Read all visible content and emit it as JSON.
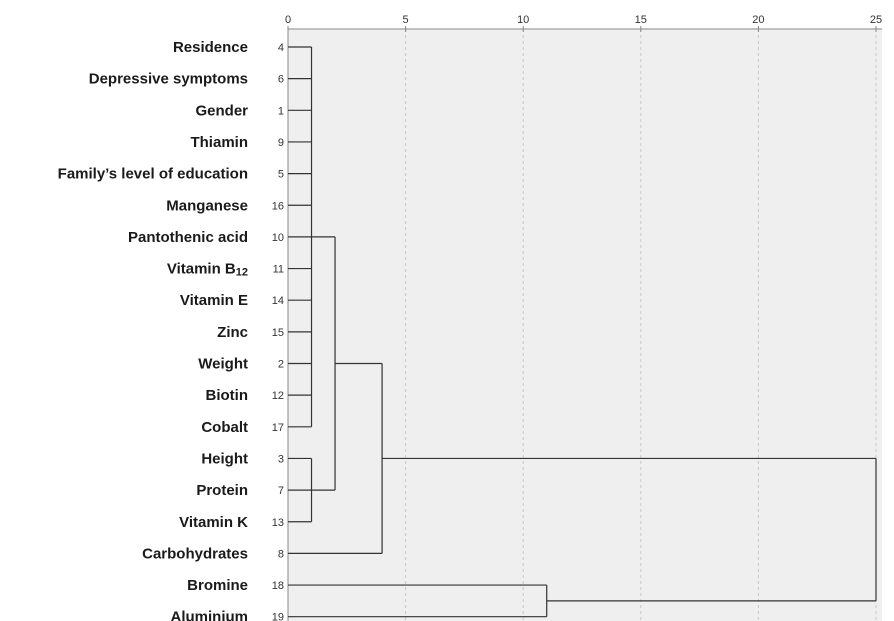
{
  "chart_data": {
    "type": "dendrogram",
    "xlim": [
      0,
      25
    ],
    "x_ticks": [
      "0",
      "5",
      "10",
      "15",
      "20",
      "25"
    ],
    "grid": true,
    "colors": {
      "plot_background": "#efefef",
      "line": "#333333",
      "grid": "#c8c8c8"
    },
    "leaves": [
      {
        "label": "Residence",
        "id": "4"
      },
      {
        "label": "Depressive symptoms",
        "id": "6"
      },
      {
        "label": "Gender",
        "id": "1"
      },
      {
        "label": "Thiamin",
        "id": "9"
      },
      {
        "label": "Family’s level of education",
        "id": "5"
      },
      {
        "label": "Manganese",
        "id": "16"
      },
      {
        "label": "Pantothenic acid",
        "id": "10"
      },
      {
        "label": "Vitamin B",
        "label_sub": "12",
        "id": "11"
      },
      {
        "label": "Vitamin E",
        "id": "14"
      },
      {
        "label": "Zinc",
        "id": "15"
      },
      {
        "label": "Weight",
        "id": "2"
      },
      {
        "label": "Biotin",
        "id": "12"
      },
      {
        "label": "Cobalt",
        "id": "17"
      },
      {
        "label": "Height",
        "id": "3"
      },
      {
        "label": "Protein",
        "id": "7"
      },
      {
        "label": "Vitamin K",
        "id": "13"
      },
      {
        "label": "Carbohydrates",
        "id": "8"
      },
      {
        "label": "Bromine",
        "id": "18"
      },
      {
        "label": "Aluminium",
        "id": "19"
      }
    ],
    "merges": [
      {
        "members": [
          0,
          1,
          2,
          3,
          4,
          5,
          6,
          7,
          8,
          9,
          10,
          11,
          12
        ],
        "distance": 1
      },
      {
        "members": [
          13,
          14,
          15
        ],
        "distance": 1
      },
      {
        "members": [
          "m0",
          "m1"
        ],
        "distance": 2
      },
      {
        "members": [
          "m2",
          16
        ],
        "distance": 4
      },
      {
        "members": [
          17,
          18
        ],
        "distance": 11
      },
      {
        "members": [
          "m3",
          "m4"
        ],
        "distance": 25
      }
    ]
  }
}
